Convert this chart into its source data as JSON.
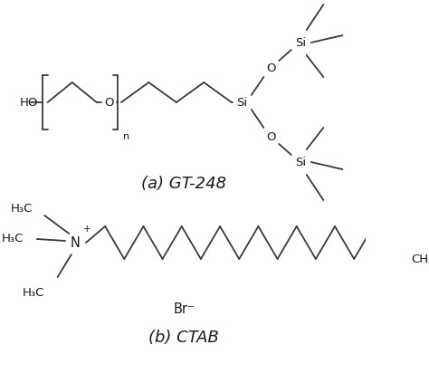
{
  "bg_color": "#ffffff",
  "line_color": "#3a3a3a",
  "text_color": "#1a1a1a",
  "figsize": [
    4.74,
    4.23
  ],
  "dpi": 100,
  "label_a": "(a) GT-248",
  "label_b": "(b) CTAB",
  "br_label": "Br⁻"
}
